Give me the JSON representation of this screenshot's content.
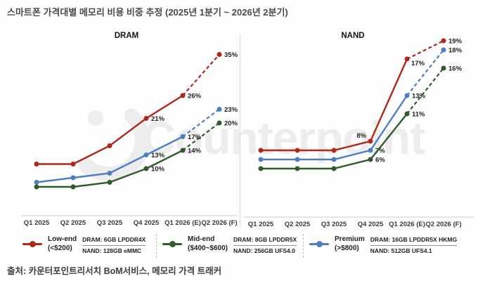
{
  "title": "스마트폰 가격대별 메모리 비용 비중 추정 (2025년 1분기 ~ 2026년 2분기)",
  "source": "출처: 카운터포인트리서치 BoM서비스, 메모리 가격 트래커",
  "watermark": "Counterpoint",
  "colors": {
    "low_end": "#b1271b",
    "mid_end": "#2f5c28",
    "premium": "#4d7ebf",
    "axis": "#c9c9c9",
    "value_label": "#1f1f1f"
  },
  "chart_data": [
    {
      "type": "line",
      "title": "DRAM",
      "unit": "%",
      "categories": [
        "Q1 2025",
        "Q2 2025",
        "Q3 2025",
        "Q4 2025",
        "Q1 2026 (E)",
        "Q2 2026 (F)"
      ],
      "ylim": [
        0,
        38
      ],
      "grid": false,
      "dashed_from_index": 4,
      "series": [
        {
          "name": "Low-end",
          "color_key": "low_end",
          "values": [
            11,
            11,
            15,
            21,
            26,
            35
          ],
          "labels": [
            null,
            null,
            null,
            "21%",
            "26%",
            "35%"
          ]
        },
        {
          "name": "Premium",
          "color_key": "premium",
          "values": [
            7,
            8,
            9,
            13,
            17,
            23
          ],
          "labels": [
            null,
            null,
            null,
            "13%",
            "17%",
            "23%"
          ]
        },
        {
          "name": "Mid-end",
          "color_key": "mid_end",
          "values": [
            6,
            6,
            7,
            10,
            14,
            20
          ],
          "labels": [
            null,
            null,
            null,
            "10%",
            "14%",
            "20%"
          ]
        }
      ]
    },
    {
      "type": "line",
      "title": "NAND",
      "unit": "%",
      "categories": [
        "Q1 2025",
        "Q2 2025",
        "Q3 2025",
        "Q4 2025",
        "Q1 2026 (E)",
        "Q2 2026 (F)"
      ],
      "ylim": [
        0,
        20
      ],
      "grid": false,
      "dashed_from_index": 4,
      "series": [
        {
          "name": "Low-end",
          "color_key": "low_end",
          "values": [
            7,
            7,
            7,
            8,
            17,
            19
          ],
          "labels": [
            null,
            null,
            null,
            "8%",
            "17%",
            "19%"
          ],
          "label_pos": {
            "3": "above-left",
            "4": "below-right"
          }
        },
        {
          "name": "Premium",
          "color_key": "premium",
          "values": [
            6,
            6,
            6,
            7,
            13,
            18
          ],
          "labels": [
            null,
            null,
            null,
            "7%",
            "13%",
            "18%"
          ]
        },
        {
          "name": "Mid-end",
          "color_key": "mid_end",
          "values": [
            5,
            5,
            5,
            6,
            11,
            16
          ],
          "labels": [
            null,
            null,
            null,
            "6%",
            "11%",
            "16%"
          ]
        }
      ]
    }
  ],
  "legend": {
    "items": [
      {
        "name": "Low-end",
        "range": "(<$200)",
        "dram": "DRAM: 6GB LPDDR4X",
        "nand": "NAND: 128GB eMMC",
        "color_key": "low_end"
      },
      {
        "name": "Mid-end",
        "range": "($400~$600)",
        "dram": "DRAM: 8GB LPDDR5X",
        "nand": "NAND: 256GB UFS4.0",
        "color_key": "mid_end"
      },
      {
        "name": "Premium",
        "range": "(>$800)",
        "dram": "DRAM: 16GB LPDDR5X HKMG",
        "nand": "NAND: 512GB UFS4.1",
        "color_key": "premium"
      }
    ]
  }
}
